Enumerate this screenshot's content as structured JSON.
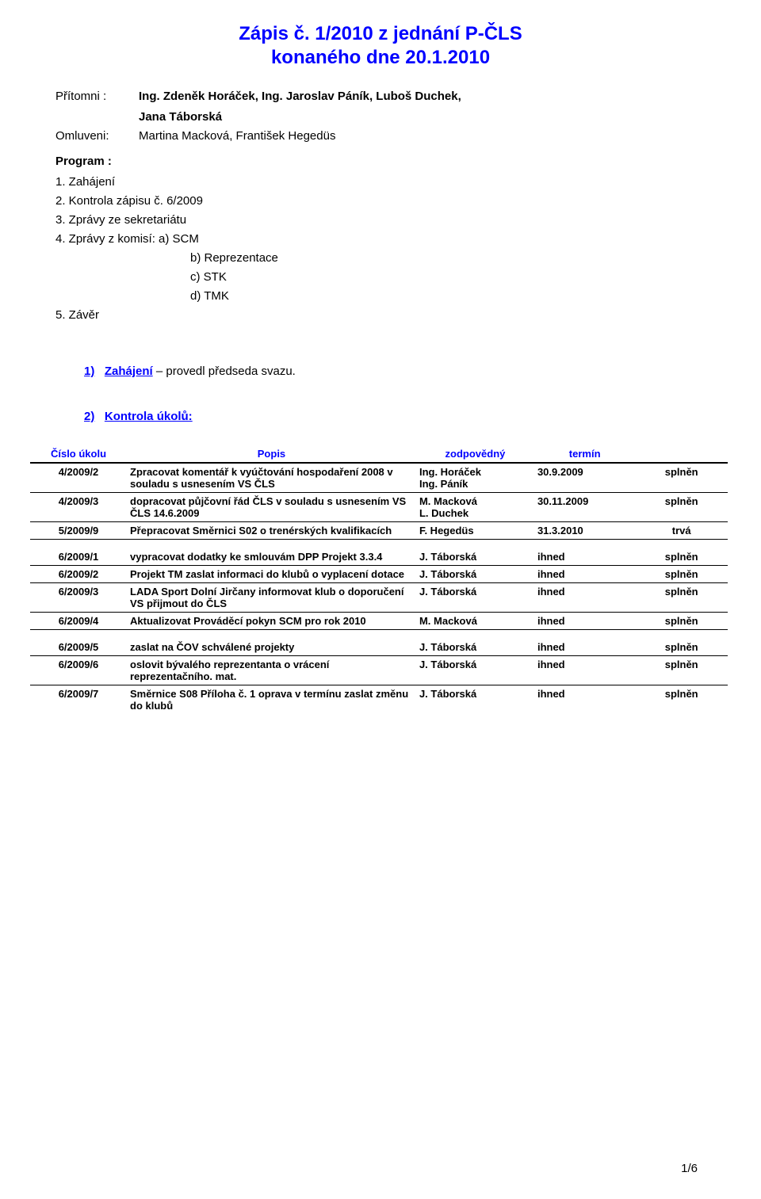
{
  "title": {
    "line1": "Zápis č. 1/2010 z jednání P-ČLS",
    "line2": "konaného dne 20.1.2010"
  },
  "attendance": {
    "present_label": "Přítomni :",
    "present_value": "Ing. Zdeněk Horáček, Ing. Jaroslav Páník,  Luboš Duchek,",
    "present_value2": "Jana Táborská",
    "excused_label": "Omluveni:",
    "excused_value": "Martina Macková, František Hegedüs"
  },
  "program": {
    "heading": "Program :",
    "items": [
      "1.  Zahájení",
      "2.  Kontrola zápisu č. 6/2009",
      "3.  Zprávy ze sekretariátu",
      "4.  Zprávy z komisí:   a) SCM"
    ],
    "subitems": [
      "b) Reprezentace",
      "c) STK",
      "d) TMK"
    ],
    "last": "5.  Závěr"
  },
  "sections": {
    "s1": {
      "num": "1)",
      "title": "Zahájení",
      "rest": " – provedl předseda svazu."
    },
    "s2": {
      "num": "2)",
      "title": "Kontrola úkolů:"
    }
  },
  "table": {
    "headers": {
      "c1": "Číslo úkolu",
      "c2": "Popis",
      "c3": "zodpovědný",
      "c4": "termín"
    },
    "rows": [
      {
        "id": "4/2009/2",
        "desc": "Zpracovat komentář k vyúčtování hospodaření 2008  v souladu s usnesením VS ČLS",
        "who": "Ing. Horáček\nIng. Páník",
        "when": "30.9.2009",
        "status": "splněn"
      },
      {
        "id": "4/2009/3",
        "desc": "dopracovat půjčovní řád ČLS v souladu s usnesením VS ČLS 14.6.2009",
        "who": "M. Macková\nL. Duchek",
        "when": "30.11.2009",
        "status": "splněn"
      },
      {
        "id": "5/2009/9",
        "desc": "Přepracovat Směrnici S02 o trenérských kvalifikacích",
        "who": "F. Hegedüs",
        "when": "31.3.2010",
        "status": "trvá"
      },
      {
        "id": "6/2009/1",
        "desc": "vypracovat dodatky ke smlouvám DPP Projekt 3.3.4",
        "who": "J. Táborská",
        "when": "ihned",
        "status": "splněn"
      },
      {
        "id": "6/2009/2",
        "desc": "Projekt TM zaslat informaci do klubů o vyplacení dotace",
        "who": "J. Táborská",
        "when": "ihned",
        "status": "splněn"
      },
      {
        "id": "6/2009/3",
        "desc": "LADA Sport Dolní Jirčany informovat klub o doporučení VS přijmout do ČLS",
        "who": "J. Táborská",
        "when": "ihned",
        "status": "splněn"
      },
      {
        "id": "6/2009/4",
        "desc": "Aktualizovat Prováděcí pokyn SCM pro rok 2010",
        "who": "M. Macková",
        "when": "ihned",
        "status": "splněn"
      },
      {
        "id": "6/2009/5",
        "desc": "zaslat na ČOV schválené projekty",
        "who": "J. Táborská",
        "when": "ihned",
        "status": "splněn"
      },
      {
        "id": "6/2009/6",
        "desc": "oslovit bývalého reprezentanta o vrácení reprezentačního. mat.",
        "who": "J. Táborská",
        "when": "ihned",
        "status": "splněn"
      },
      {
        "id": "6/2009/7",
        "desc": "Směrnice S08 Příloha č. 1 oprava v termínu zaslat změnu do klubů",
        "who": "J. Táborská",
        "when": "ihned",
        "status": "splněn"
      }
    ]
  },
  "footer": {
    "page": "1/6"
  }
}
